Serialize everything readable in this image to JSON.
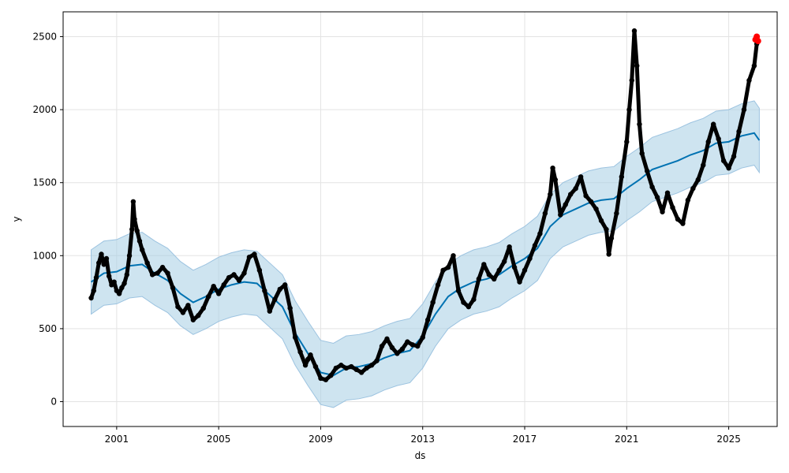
{
  "chart_data": {
    "type": "scatter",
    "title": "",
    "xlabel": "ds",
    "ylabel": "y",
    "xlim": [
      1998.9,
      2026.9
    ],
    "ylim": [
      -170,
      2670
    ],
    "x_ticks": [
      2001,
      2005,
      2009,
      2013,
      2017,
      2021,
      2025
    ],
    "y_ticks": [
      0,
      500,
      1000,
      1500,
      2000,
      2500
    ],
    "grid": true,
    "legend": "none",
    "series": [
      {
        "kind": "scatter",
        "color": "#000000",
        "points": [
          [
            2000.0,
            710
          ],
          [
            2000.1,
            760
          ],
          [
            2000.2,
            850
          ],
          [
            2000.3,
            950
          ],
          [
            2000.4,
            1010
          ],
          [
            2000.5,
            940
          ],
          [
            2000.6,
            980
          ],
          [
            2000.7,
            860
          ],
          [
            2000.8,
            800
          ],
          [
            2000.9,
            820
          ],
          [
            2001.0,
            760
          ],
          [
            2001.1,
            740
          ],
          [
            2001.2,
            780
          ],
          [
            2001.3,
            810
          ],
          [
            2001.4,
            870
          ],
          [
            2001.5,
            1000
          ],
          [
            2001.6,
            1180
          ],
          [
            2001.65,
            1370
          ],
          [
            2001.7,
            1250
          ],
          [
            2001.8,
            1170
          ],
          [
            2001.9,
            1100
          ],
          [
            2002.0,
            1040
          ],
          [
            2002.2,
            950
          ],
          [
            2002.4,
            870
          ],
          [
            2002.6,
            880
          ],
          [
            2002.8,
            920
          ],
          [
            2003.0,
            880
          ],
          [
            2003.2,
            780
          ],
          [
            2003.4,
            650
          ],
          [
            2003.6,
            610
          ],
          [
            2003.8,
            660
          ],
          [
            2004.0,
            560
          ],
          [
            2004.2,
            590
          ],
          [
            2004.4,
            640
          ],
          [
            2004.6,
            720
          ],
          [
            2004.8,
            790
          ],
          [
            2005.0,
            740
          ],
          [
            2005.2,
            800
          ],
          [
            2005.4,
            850
          ],
          [
            2005.6,
            870
          ],
          [
            2005.8,
            830
          ],
          [
            2006.0,
            880
          ],
          [
            2006.2,
            990
          ],
          [
            2006.4,
            1010
          ],
          [
            2006.6,
            900
          ],
          [
            2006.8,
            760
          ],
          [
            2007.0,
            620
          ],
          [
            2007.2,
            700
          ],
          [
            2007.4,
            770
          ],
          [
            2007.6,
            800
          ],
          [
            2007.8,
            640
          ],
          [
            2008.0,
            440
          ],
          [
            2008.2,
            340
          ],
          [
            2008.4,
            250
          ],
          [
            2008.5,
            290
          ],
          [
            2008.6,
            320
          ],
          [
            2008.8,
            240
          ],
          [
            2009.0,
            160
          ],
          [
            2009.2,
            150
          ],
          [
            2009.4,
            180
          ],
          [
            2009.6,
            230
          ],
          [
            2009.8,
            250
          ],
          [
            2010.0,
            230
          ],
          [
            2010.2,
            240
          ],
          [
            2010.4,
            220
          ],
          [
            2010.6,
            200
          ],
          [
            2010.8,
            230
          ],
          [
            2011.0,
            250
          ],
          [
            2011.2,
            280
          ],
          [
            2011.4,
            380
          ],
          [
            2011.6,
            430
          ],
          [
            2011.8,
            370
          ],
          [
            2012.0,
            330
          ],
          [
            2012.2,
            360
          ],
          [
            2012.4,
            410
          ],
          [
            2012.6,
            390
          ],
          [
            2012.8,
            380
          ],
          [
            2013.0,
            440
          ],
          [
            2013.2,
            560
          ],
          [
            2013.4,
            680
          ],
          [
            2013.6,
            800
          ],
          [
            2013.8,
            900
          ],
          [
            2014.0,
            920
          ],
          [
            2014.2,
            1000
          ],
          [
            2014.4,
            760
          ],
          [
            2014.6,
            680
          ],
          [
            2014.8,
            650
          ],
          [
            2015.0,
            700
          ],
          [
            2015.2,
            840
          ],
          [
            2015.4,
            940
          ],
          [
            2015.6,
            870
          ],
          [
            2015.8,
            840
          ],
          [
            2016.0,
            900
          ],
          [
            2016.2,
            960
          ],
          [
            2016.4,
            1060
          ],
          [
            2016.6,
            920
          ],
          [
            2016.8,
            820
          ],
          [
            2017.0,
            900
          ],
          [
            2017.2,
            980
          ],
          [
            2017.4,
            1070
          ],
          [
            2017.6,
            1150
          ],
          [
            2017.8,
            1290
          ],
          [
            2018.0,
            1420
          ],
          [
            2018.1,
            1600
          ],
          [
            2018.2,
            1520
          ],
          [
            2018.4,
            1280
          ],
          [
            2018.6,
            1350
          ],
          [
            2018.8,
            1420
          ],
          [
            2019.0,
            1460
          ],
          [
            2019.2,
            1540
          ],
          [
            2019.4,
            1410
          ],
          [
            2019.6,
            1370
          ],
          [
            2019.8,
            1320
          ],
          [
            2020.0,
            1240
          ],
          [
            2020.2,
            1180
          ],
          [
            2020.3,
            1010
          ],
          [
            2020.4,
            1120
          ],
          [
            2020.6,
            1290
          ],
          [
            2020.8,
            1540
          ],
          [
            2021.0,
            1780
          ],
          [
            2021.1,
            2000
          ],
          [
            2021.2,
            2200
          ],
          [
            2021.3,
            2540
          ],
          [
            2021.4,
            2300
          ],
          [
            2021.5,
            1900
          ],
          [
            2021.6,
            1700
          ],
          [
            2021.8,
            1580
          ],
          [
            2022.0,
            1470
          ],
          [
            2022.2,
            1400
          ],
          [
            2022.4,
            1300
          ],
          [
            2022.6,
            1430
          ],
          [
            2022.8,
            1330
          ],
          [
            2023.0,
            1250
          ],
          [
            2023.2,
            1220
          ],
          [
            2023.4,
            1380
          ],
          [
            2023.6,
            1460
          ],
          [
            2023.8,
            1520
          ],
          [
            2024.0,
            1620
          ],
          [
            2024.2,
            1780
          ],
          [
            2024.4,
            1900
          ],
          [
            2024.6,
            1800
          ],
          [
            2024.8,
            1650
          ],
          [
            2025.0,
            1600
          ],
          [
            2025.2,
            1680
          ],
          [
            2025.4,
            1850
          ],
          [
            2025.6,
            2000
          ],
          [
            2025.8,
            2200
          ],
          [
            2026.0,
            2300
          ],
          [
            2026.1,
            2450
          ]
        ]
      },
      {
        "kind": "scatter",
        "color": "#ff0000",
        "points": [
          [
            2026.05,
            2480
          ],
          [
            2026.1,
            2500
          ],
          [
            2026.15,
            2470
          ]
        ]
      },
      {
        "kind": "line",
        "name": "",
        "color": "#0072b2",
        "points": [
          [
            2000.0,
            820
          ],
          [
            2000.5,
            880
          ],
          [
            2001.0,
            890
          ],
          [
            2001.5,
            930
          ],
          [
            2002.0,
            940
          ],
          [
            2002.5,
            880
          ],
          [
            2003.0,
            830
          ],
          [
            2003.5,
            740
          ],
          [
            2004.0,
            680
          ],
          [
            2004.5,
            720
          ],
          [
            2005.0,
            770
          ],
          [
            2005.5,
            800
          ],
          [
            2006.0,
            820
          ],
          [
            2006.5,
            810
          ],
          [
            2007.0,
            730
          ],
          [
            2007.5,
            650
          ],
          [
            2008.0,
            470
          ],
          [
            2008.5,
            330
          ],
          [
            2009.0,
            200
          ],
          [
            2009.5,
            180
          ],
          [
            2010.0,
            230
          ],
          [
            2010.5,
            240
          ],
          [
            2011.0,
            260
          ],
          [
            2011.5,
            300
          ],
          [
            2012.0,
            330
          ],
          [
            2012.5,
            350
          ],
          [
            2013.0,
            450
          ],
          [
            2013.5,
            600
          ],
          [
            2014.0,
            720
          ],
          [
            2014.5,
            780
          ],
          [
            2015.0,
            820
          ],
          [
            2015.5,
            840
          ],
          [
            2016.0,
            870
          ],
          [
            2016.5,
            930
          ],
          [
            2017.0,
            980
          ],
          [
            2017.5,
            1050
          ],
          [
            2018.0,
            1200
          ],
          [
            2018.5,
            1280
          ],
          [
            2019.0,
            1320
          ],
          [
            2019.5,
            1360
          ],
          [
            2020.0,
            1380
          ],
          [
            2020.5,
            1390
          ],
          [
            2021.0,
            1460
          ],
          [
            2021.5,
            1520
          ],
          [
            2022.0,
            1590
          ],
          [
            2022.5,
            1620
          ],
          [
            2023.0,
            1650
          ],
          [
            2023.5,
            1690
          ],
          [
            2024.0,
            1720
          ],
          [
            2024.5,
            1770
          ],
          [
            2025.0,
            1780
          ],
          [
            2025.5,
            1820
          ],
          [
            2026.0,
            1840
          ],
          [
            2026.2,
            1790
          ]
        ]
      }
    ],
    "uncertainty_band": {
      "color": "#a6cee3",
      "offset": 220
    }
  }
}
